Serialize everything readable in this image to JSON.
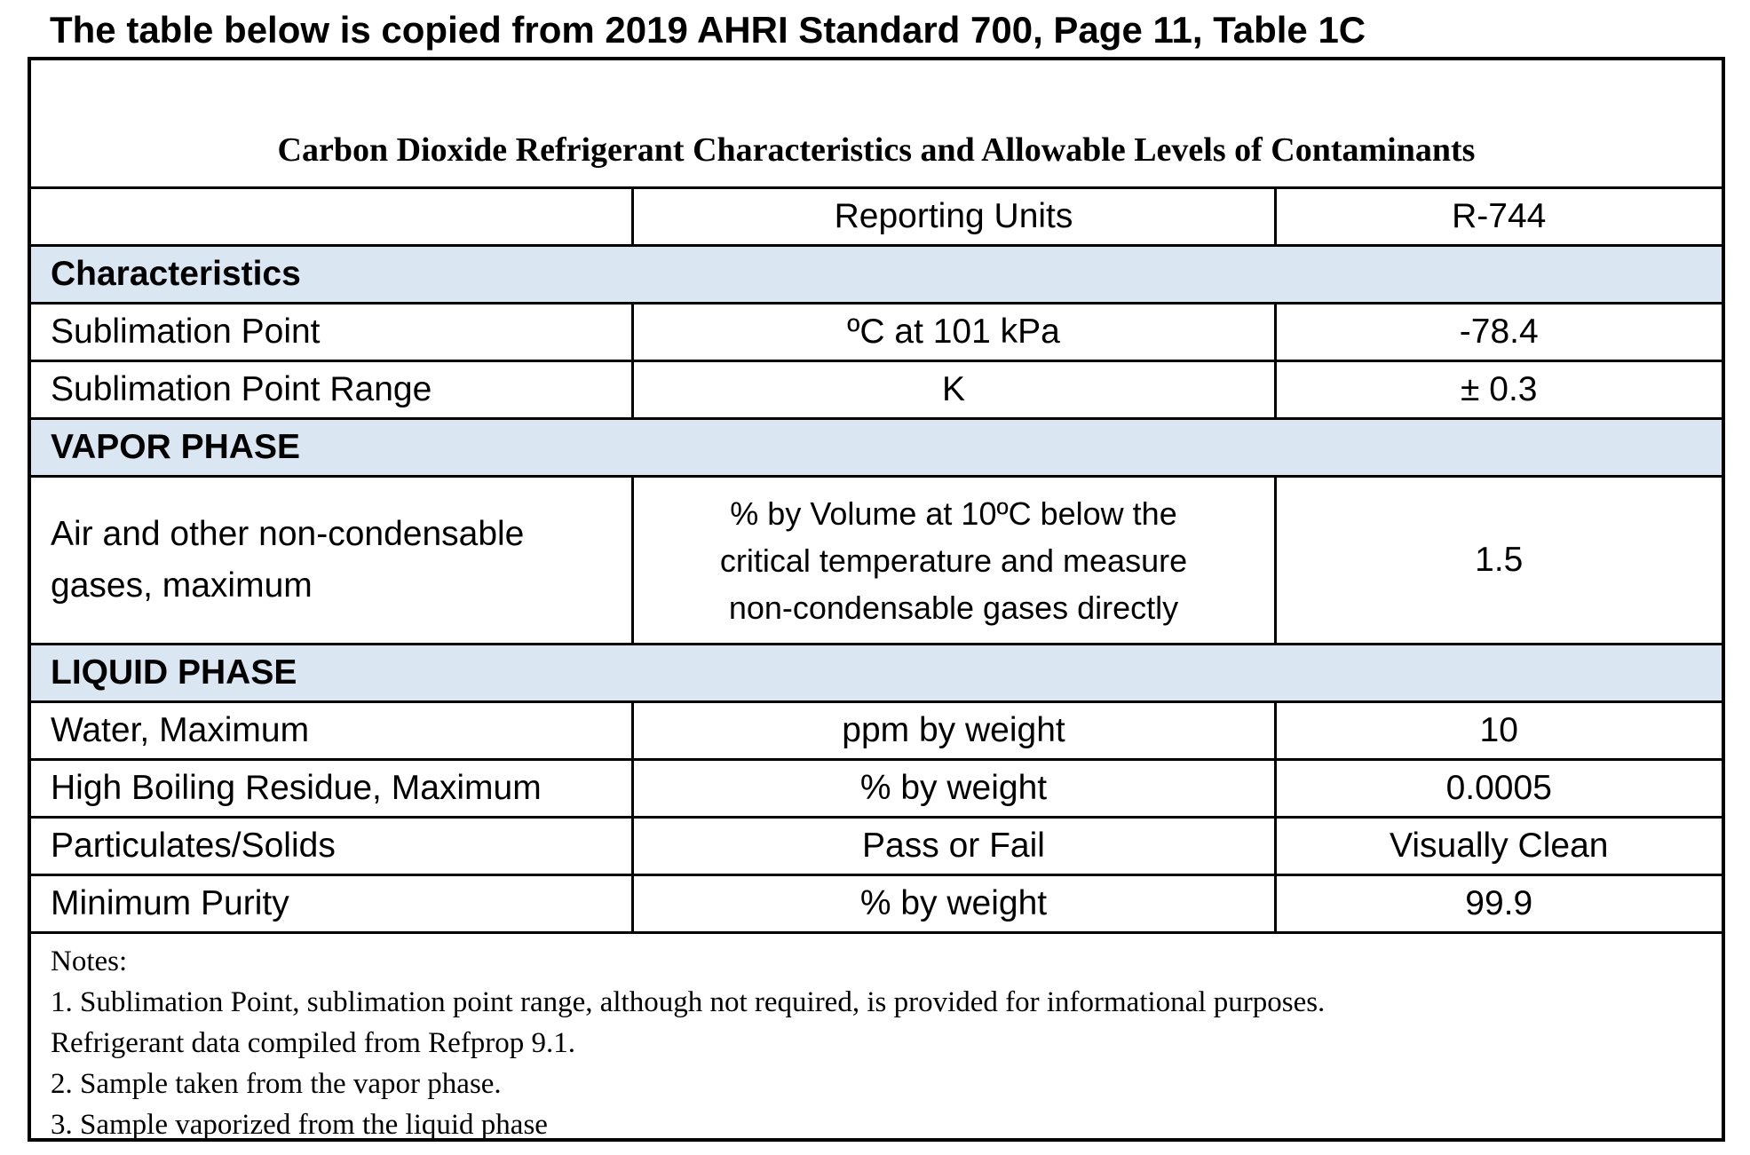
{
  "page": {
    "heading": "The table below is copied from 2019 AHRI Standard 700, Page 11, Table 1C"
  },
  "table": {
    "title": "Carbon Dioxide Refrigerant Characteristics and Allowable Levels of Contaminants",
    "header": {
      "col1": "",
      "col2": "Reporting Units",
      "col3": "R-744"
    },
    "sections": [
      {
        "name": "Characteristics",
        "rows": [
          {
            "property": "Sublimation Point",
            "units": "ºC at 101 kPa",
            "value": "-78.4"
          },
          {
            "property": "Sublimation Point Range",
            "units": "K",
            "value": "± 0.3"
          }
        ]
      },
      {
        "name": "VAPOR PHASE",
        "rows": [
          {
            "property_lines": [
              "Air and other non-condensable",
              "gases, maximum"
            ],
            "units_lines": [
              "% by Volume at 10ºC below the",
              "critical temperature and measure",
              "non-condensable gases directly"
            ],
            "value": "1.5"
          }
        ]
      },
      {
        "name": "LIQUID PHASE",
        "rows": [
          {
            "property": "Water, Maximum",
            "units": "ppm by weight",
            "value": "10"
          },
          {
            "property": "High Boiling Residue, Maximum",
            "units": "% by weight",
            "value": "0.0005"
          },
          {
            "property": "Particulates/Solids",
            "units": "Pass or Fail",
            "value": "Visually Clean"
          },
          {
            "property": "Minimum Purity",
            "units": "% by weight",
            "value": "99.9"
          }
        ]
      }
    ],
    "notes": [
      "Notes:",
      "1. Sublimation Point, sublimation point range, although not required, is provided for informational purposes.",
      "Refrigerant data compiled from Refprop 9.1.",
      "2. Sample taken from the vapor phase.",
      "3. Sample vaporized from the liquid phase"
    ],
    "section_fill_color": "#dae7f3"
  }
}
